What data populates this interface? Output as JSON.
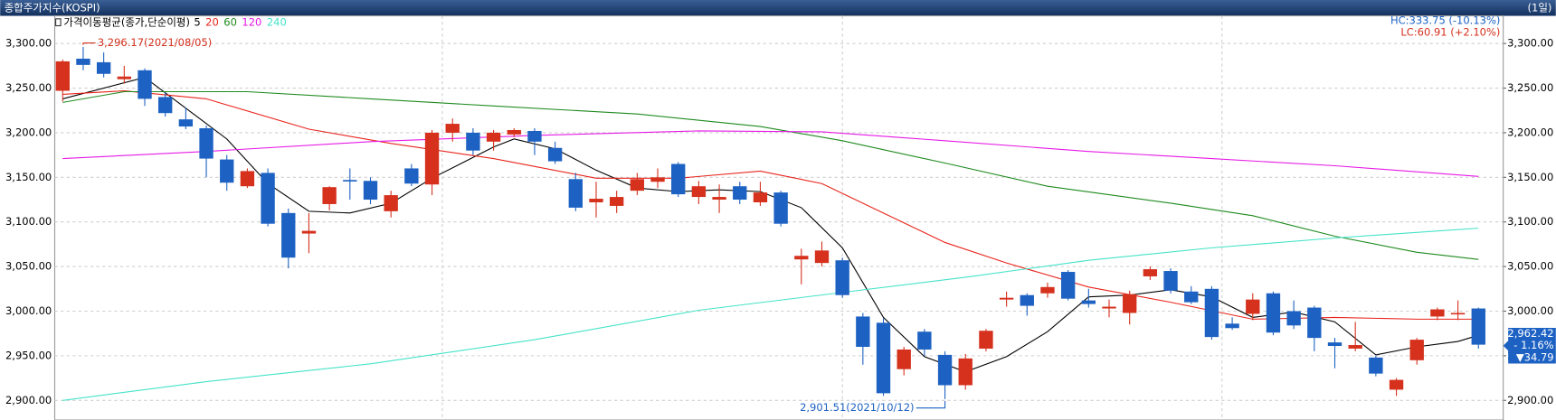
{
  "chart_data": {
    "type": "candlestick",
    "title": "종합주가지수(KOSPI)",
    "period": "(1일)",
    "legend_title": "가격이동평균(종가,단순이평)",
    "up_color": "#d5311d",
    "down_color": "#1d62c3",
    "open": [
      3247,
      3283,
      3279,
      3260,
      3270,
      3240,
      3215,
      3205,
      3170,
      3140,
      3155,
      3110,
      3087,
      3120,
      3147,
      3146,
      3112,
      3160,
      3142,
      3200,
      3200,
      3190,
      3198,
      3202,
      3183,
      3148,
      3122,
      3118,
      3135,
      3145,
      3165,
      3128,
      3125,
      3140,
      3122,
      3133,
      3058,
      3054,
      3057,
      2994,
      2987,
      2935,
      2977,
      2951,
      2917,
      2958,
      3013,
      3018,
      3020,
      3044,
      3012,
      3003,
      2998,
      3039,
      3045,
      3022,
      3025,
      2986,
      2997,
      3020,
      3000,
      3004,
      2965,
      2958,
      2948,
      2912,
      2945,
      2994,
      2997,
      3003
    ],
    "high": [
      3282,
      3296.17,
      3290,
      3275,
      3272,
      3245,
      3228,
      3208,
      3175,
      3160,
      3160,
      3115,
      3110,
      3140,
      3160,
      3150,
      3135,
      3165,
      3203,
      3216,
      3205,
      3203,
      3205,
      3205,
      3190,
      3155,
      3145,
      3135,
      3155,
      3160,
      3167,
      3146,
      3142,
      3145,
      3145,
      3135,
      3070,
      3078,
      3060,
      2998,
      2992,
      2960,
      2980,
      2955,
      2952,
      2980,
      3022,
      3020,
      3032,
      3046,
      3025,
      3013,
      3023,
      3050,
      3048,
      3028,
      3028,
      2993,
      3020,
      3022,
      3012,
      3006,
      2970,
      2988,
      2950,
      2925,
      2970,
      3004,
      3012,
      3004
    ],
    "low": [
      3235,
      3270,
      3262,
      3255,
      3230,
      3218,
      3204,
      3150,
      3135,
      3138,
      3095,
      3048,
      3065,
      3113,
      3125,
      3120,
      3105,
      3140,
      3130,
      3190,
      3175,
      3180,
      3195,
      3175,
      3165,
      3112,
      3105,
      3110,
      3130,
      3138,
      3128,
      3120,
      3110,
      3120,
      3118,
      3095,
      3030,
      3050,
      3015,
      2940,
      2905,
      2928,
      2950,
      2901.51,
      2912,
      2955,
      3005,
      2995,
      3015,
      3012,
      3004,
      2993,
      2985,
      3035,
      3020,
      3008,
      2968,
      2979,
      2990,
      2973,
      2980,
      2955,
      2936,
      2955,
      2927,
      2905,
      2940,
      2990,
      2990,
      2958
    ],
    "close": [
      3280,
      3276,
      3266,
      3263,
      3238,
      3222,
      3207,
      3171,
      3144,
      3157,
      3098,
      3060,
      3090,
      3139,
      3146,
      3125,
      3130,
      3143,
      3200,
      3210,
      3180,
      3200,
      3203,
      3190,
      3168,
      3116,
      3126,
      3128,
      3148,
      3150,
      3131,
      3140,
      3128,
      3125,
      3133,
      3098,
      3062,
      3068,
      3018,
      2960,
      2908,
      2957,
      2957,
      2917,
      2947,
      2978,
      3015,
      3006,
      3027,
      3014,
      3008,
      3005,
      3019,
      3047,
      3023,
      3010,
      2971,
      2981,
      3013,
      2976,
      2984,
      2970,
      2961,
      2962,
      2930,
      2923,
      2968,
      3002,
      2998,
      2962.42
    ],
    "series": [
      {
        "name": "5",
        "color": "#000000",
        "x": [
          0,
          4,
          8,
          10,
          12,
          14,
          16,
          18,
          21,
          22,
          24,
          26,
          28,
          30,
          32,
          34,
          36,
          38,
          40,
          42,
          44,
          46,
          48,
          50,
          52,
          54,
          56,
          58,
          60,
          62,
          64,
          66,
          68,
          69
        ],
        "values": [
          3238,
          3262,
          3193,
          3143,
          3112,
          3110,
          3121,
          3149,
          3184,
          3193,
          3182,
          3158,
          3138,
          3134,
          3136,
          3134,
          3116,
          3071,
          2993,
          2949,
          2932,
          2949,
          2977,
          3016,
          3018,
          3024,
          3016,
          2993,
          2999,
          2988,
          2951,
          2960,
          2966,
          2973
        ]
      },
      {
        "name": "20",
        "color": "#e8241b",
        "x": [
          0,
          3,
          7,
          12,
          16,
          21,
          26,
          30,
          34,
          37,
          40,
          43,
          46,
          50,
          54,
          58,
          62,
          66,
          69
        ],
        "values": [
          3243,
          3247,
          3238,
          3204,
          3188,
          3171,
          3149,
          3149,
          3157,
          3143,
          3110,
          3077,
          3054,
          3027,
          3010,
          2991,
          2993,
          2991,
          2991
        ]
      },
      {
        "name": "60",
        "color": "#1e8a1e",
        "x": [
          0,
          3,
          9,
          15,
          21,
          28,
          34,
          38,
          43,
          48,
          54,
          58,
          62,
          66,
          69
        ],
        "values": [
          3234,
          3246,
          3246,
          3238,
          3230,
          3221,
          3207,
          3191,
          3166,
          3140,
          3121,
          3107,
          3084,
          3066,
          3058
        ]
      },
      {
        "name": "120",
        "color": "#e619e6",
        "x": [
          0,
          7,
          15,
          23,
          31,
          37,
          43,
          50,
          56,
          62,
          69
        ],
        "values": [
          3171,
          3179,
          3190,
          3197,
          3202,
          3201,
          3191,
          3179,
          3171,
          3163,
          3151
        ]
      },
      {
        "name": "240",
        "color": "#45e3c8",
        "x": [
          0,
          7,
          15,
          23,
          31,
          38,
          44,
          50,
          56,
          62,
          69
        ],
        "values": [
          2900,
          2921,
          2941,
          2968,
          3001,
          3021,
          3038,
          3057,
          3071,
          3082,
          3093
        ]
      }
    ],
    "ylim": [
      2878,
      3331
    ],
    "yticks": [
      {
        "value": 2900,
        "label": "2,900.00"
      },
      {
        "value": 2950,
        "label": "2,950.00"
      },
      {
        "value": 3000,
        "label": "3,000.00"
      },
      {
        "value": 3050,
        "label": "3,050.00"
      },
      {
        "value": 3100,
        "label": "3,100.00"
      },
      {
        "value": 3150,
        "label": "3,150.00"
      },
      {
        "value": 3200,
        "label": "3,200.00"
      },
      {
        "value": 3250,
        "label": "3,250.00"
      },
      {
        "value": 3300,
        "label": "3,300.00"
      }
    ],
    "grid": true,
    "hc": "HC:333.75 (-10.13%)",
    "lc": "LC:60.91 (+2.10%)",
    "annotations": [
      {
        "text": "3,296.17(2021/08/05)",
        "color": "#d5311d"
      },
      {
        "text": "2,901.51(2021/10/12)",
        "color": "#1d62c3"
      }
    ],
    "price_box": [
      "2,962.42",
      "- 1.16%",
      "▼34.79"
    ]
  }
}
